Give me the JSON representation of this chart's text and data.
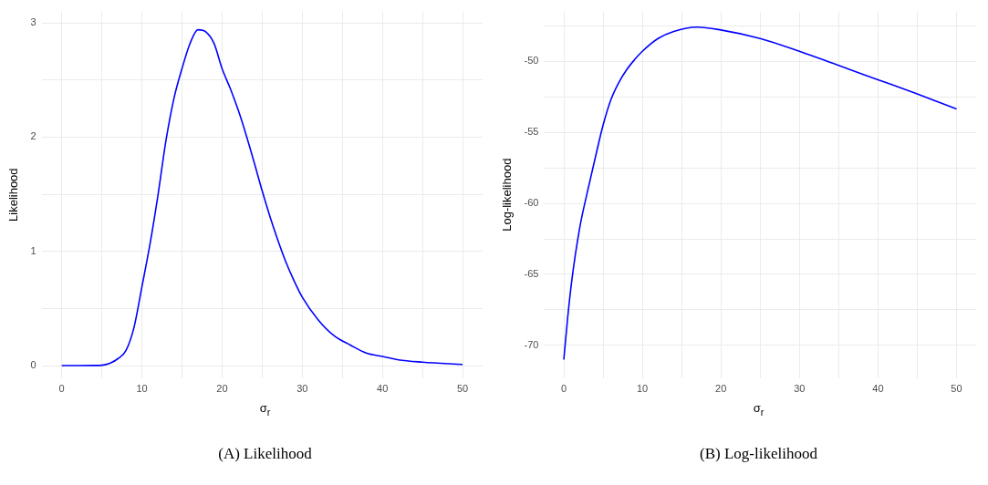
{
  "chart_data": [
    {
      "type": "line",
      "xlabel": "σ$_{r}$",
      "ylabel": "Likelihood",
      "annotations": [
        "(A) Likelihood"
      ],
      "grid": true,
      "marker": "none",
      "color": "#0000ff",
      "x": [
        0,
        2,
        4,
        5,
        6,
        7,
        8,
        9,
        10,
        11,
        12,
        13,
        14,
        15,
        16,
        17,
        18,
        19,
        20,
        21,
        22,
        23,
        24,
        25,
        26,
        27,
        28,
        29,
        30,
        32,
        34,
        36,
        38,
        40,
        42,
        45,
        50
      ],
      "values": [
        0,
        0,
        0.001,
        0.003,
        0.02,
        0.06,
        0.13,
        0.33,
        0.69,
        1.06,
        1.49,
        1.97,
        2.34,
        2.6,
        2.82,
        2.94,
        2.92,
        2.82,
        2.6,
        2.43,
        2.24,
        2.02,
        1.78,
        1.53,
        1.3,
        1.09,
        0.9,
        0.74,
        0.6,
        0.4,
        0.26,
        0.18,
        0.11,
        0.08,
        0.05,
        0.03,
        0.01
      ],
      "xlim": [
        -2.5,
        52.5
      ],
      "xticks": [
        0,
        {
          "value": 5,
          "label": null
        },
        10,
        {
          "value": 15,
          "label": null
        },
        20,
        {
          "value": 25,
          "label": null
        },
        30,
        {
          "value": 35,
          "label": null
        },
        40,
        {
          "value": 45,
          "label": null
        },
        50
      ],
      "ylim": [
        -0.11,
        3.1
      ],
      "yticks": [
        0,
        {
          "value": 0.5,
          "label": null
        },
        1,
        {
          "value": 1.5,
          "label": null
        },
        2,
        {
          "value": 2.5,
          "label": null
        },
        3
      ]
    },
    {
      "type": "line",
      "xlabel": "σ$_{r}$",
      "ylabel": "Log-likelihood",
      "annotations": [
        "(B) Log-likelihood"
      ],
      "grid": true,
      "marker": "none",
      "color": "#0000ff",
      "x": [
        0,
        0.5,
        1,
        2,
        3,
        4,
        5,
        6,
        7,
        8,
        9,
        10,
        12,
        14,
        17,
        20,
        25,
        30,
        35,
        40,
        45,
        50
      ],
      "values": [
        -71,
        -68,
        -65.5,
        -61.8,
        -59.2,
        -56.8,
        -54.5,
        -52.7,
        -51.5,
        -50.6,
        -49.9,
        -49.3,
        -48.4,
        -47.9,
        -47.6,
        -47.8,
        -48.4,
        -49.3,
        -50.3,
        -51.3,
        -52.3,
        -53.35
      ],
      "xlim": [
        -2.5,
        52.5
      ],
      "xticks": [
        0,
        {
          "value": 5,
          "label": null
        },
        10,
        {
          "value": 15,
          "label": null
        },
        20,
        {
          "value": 25,
          "label": null
        },
        30,
        {
          "value": 35,
          "label": null
        },
        40,
        {
          "value": 45,
          "label": null
        },
        50
      ],
      "ylim": [
        -72.3,
        -46.5
      ],
      "yticks": [
        -70,
        {
          "value": -67.5,
          "label": null
        },
        -65,
        {
          "value": -62.5,
          "label": null
        },
        -60,
        {
          "value": -57.5,
          "label": null
        },
        -55,
        {
          "value": -52.5,
          "label": null
        },
        -50,
        {
          "value": -47.5,
          "label": null
        }
      ]
    }
  ]
}
